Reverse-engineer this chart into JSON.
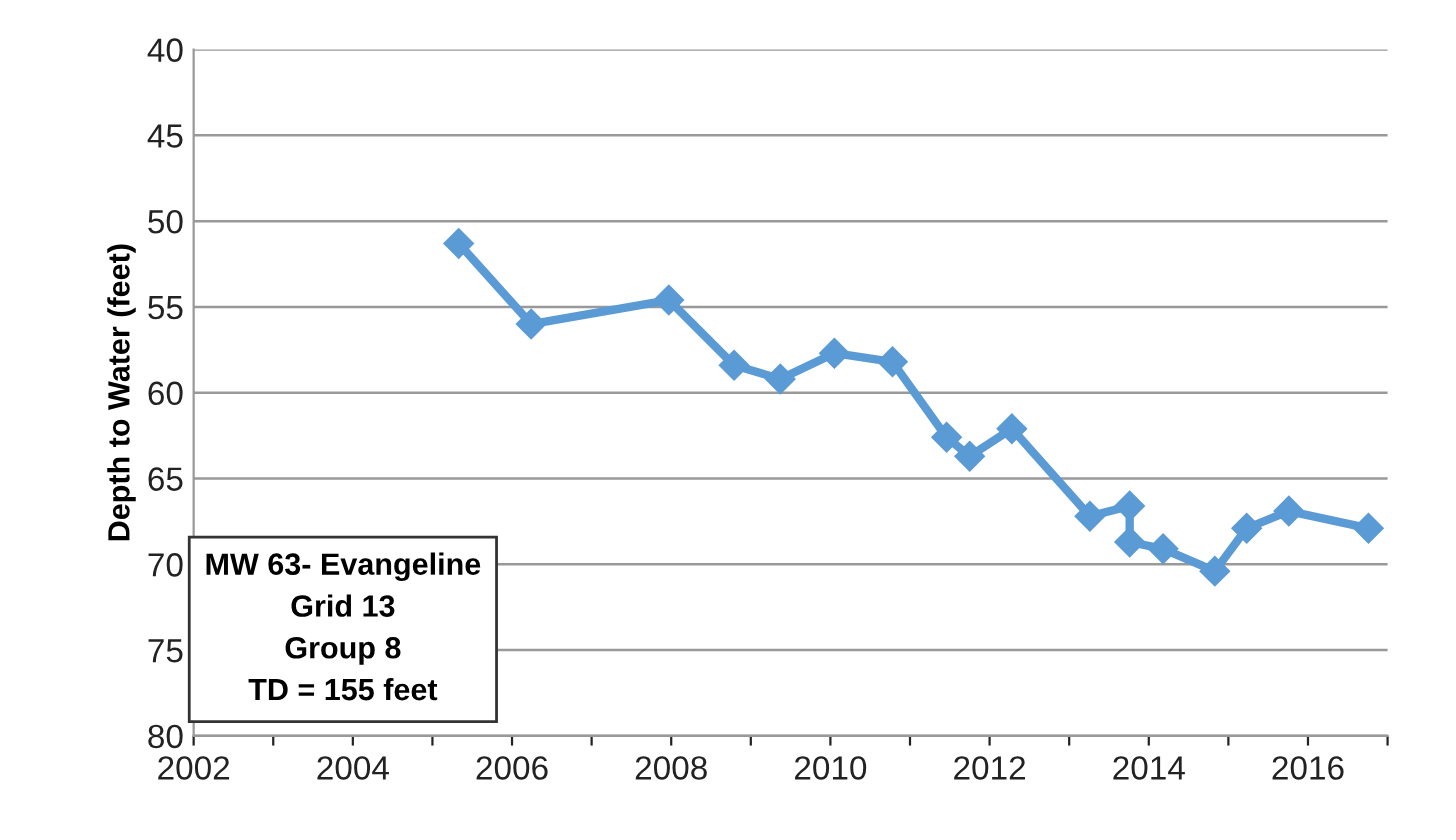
{
  "chart_data": {
    "type": "line",
    "ylabel": "Depth to Water (feet)",
    "x": [
      2005.33,
      2006.24,
      2007.97,
      2008.79,
      2009.37,
      2010.05,
      2010.78,
      2011.46,
      2011.75,
      2012.28,
      2013.26,
      2013.76,
      2013.76,
      2014.18,
      2014.83,
      2015.23,
      2015.76,
      2016.76
    ],
    "series": [
      {
        "color": "#5b9bd5",
        "values": [
          51.3,
          56.0,
          54.6,
          58.4,
          59.2,
          57.7,
          58.2,
          62.6,
          63.7,
          62.1,
          67.2,
          66.6,
          68.7,
          69.1,
          70.4,
          67.9,
          66.9,
          67.9
        ]
      }
    ],
    "xlim": [
      2002,
      2017
    ],
    "xticks": [
      2002,
      {
        "value": 2003,
        "label": null
      },
      2004,
      {
        "value": 2005,
        "label": null
      },
      2006,
      {
        "value": 2007,
        "label": null
      },
      2008,
      {
        "value": 2009,
        "label": null
      },
      2010,
      {
        "value": 2011,
        "label": null
      },
      2012,
      {
        "value": 2013,
        "label": null
      },
      2014,
      {
        "value": 2015,
        "label": null
      },
      2016,
      {
        "value": 2017,
        "label": null
      }
    ],
    "ylim": [
      80,
      40
    ],
    "yticks": [
      40,
      45,
      50,
      55,
      60,
      65,
      70,
      75,
      80
    ],
    "grid": "y",
    "marker": "diamond",
    "line_style": "solid",
    "legend": false,
    "annotations": [
      "MW 63- Evangeline\nGrid 13\nGroup 8\nTD = 155 feet"
    ]
  }
}
